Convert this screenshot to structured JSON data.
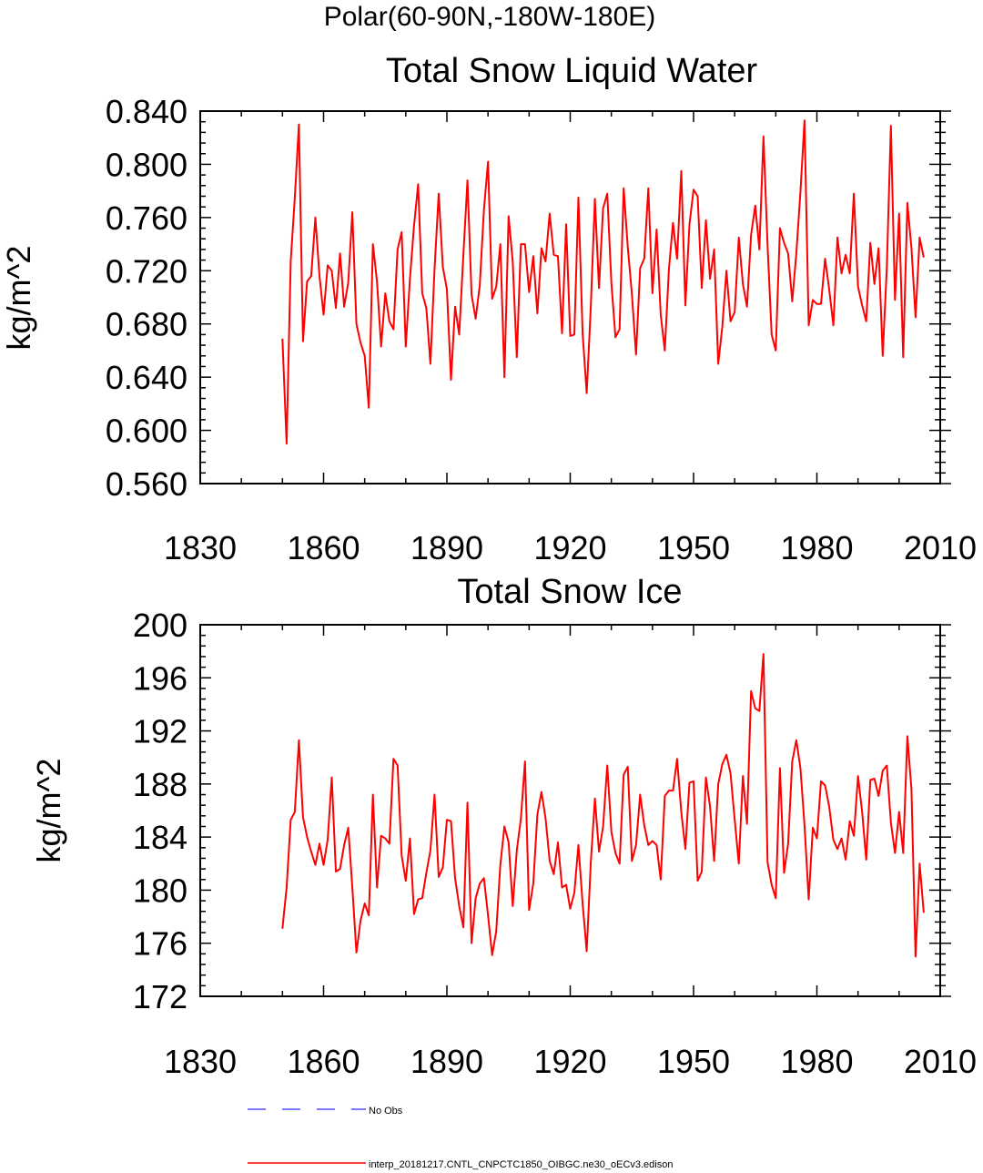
{
  "page_title": "Polar(60-90N,-180W-180E)",
  "legend": {
    "no_obs_label": "No Obs",
    "no_obs_color": "#4d4dff",
    "run_label": "interp_20181217.CNTL_CNPCTC1850_OIBGC.ne30_oECv3.edison",
    "run_color": "#ff0000"
  },
  "chart_data": [
    {
      "type": "line",
      "title": "Total Snow Liquid Water",
      "xlabel": "",
      "ylabel": "kg/m^2",
      "xlim": [
        1830,
        2010
      ],
      "ylim": [
        0.56,
        0.84
      ],
      "xticks": [
        "1830",
        "1860",
        "1890",
        "1920",
        "1950",
        "1980",
        "2010"
      ],
      "yticks": [
        "0.560",
        "0.600",
        "0.640",
        "0.680",
        "0.720",
        "0.760",
        "0.800",
        "0.840"
      ],
      "color": "#ff0000",
      "x_start": 1850,
      "series": [
        {
          "name": "interp_20181217.CNTL_CNPCTC1850_OIBGC.ne30_oECv3.edison",
          "values": [
            0.669,
            0.59,
            0.727,
            0.775,
            0.83,
            0.667,
            0.712,
            0.716,
            0.76,
            0.716,
            0.687,
            0.724,
            0.72,
            0.692,
            0.733,
            0.693,
            0.711,
            0.764,
            0.68,
            0.666,
            0.656,
            0.617,
            0.74,
            0.712,
            0.663,
            0.703,
            0.682,
            0.676,
            0.736,
            0.749,
            0.663,
            0.714,
            0.754,
            0.785,
            0.703,
            0.692,
            0.65,
            0.721,
            0.778,
            0.723,
            0.706,
            0.638,
            0.693,
            0.672,
            0.732,
            0.788,
            0.702,
            0.684,
            0.709,
            0.766,
            0.802,
            0.699,
            0.708,
            0.74,
            0.64,
            0.761,
            0.727,
            0.655,
            0.74,
            0.74,
            0.704,
            0.731,
            0.688,
            0.737,
            0.727,
            0.763,
            0.732,
            0.731,
            0.673,
            0.755,
            0.671,
            0.672,
            0.775,
            0.673,
            0.628,
            0.693,
            0.774,
            0.707,
            0.767,
            0.778,
            0.711,
            0.67,
            0.676,
            0.782,
            0.738,
            0.702,
            0.657,
            0.722,
            0.729,
            0.782,
            0.703,
            0.751,
            0.687,
            0.66,
            0.721,
            0.756,
            0.729,
            0.795,
            0.694,
            0.755,
            0.781,
            0.776,
            0.707,
            0.758,
            0.714,
            0.736,
            0.65,
            0.678,
            0.72,
            0.682,
            0.689,
            0.745,
            0.71,
            0.693,
            0.747,
            0.769,
            0.736,
            0.821,
            0.739,
            0.672,
            0.66,
            0.752,
            0.741,
            0.733,
            0.697,
            0.733,
            0.779,
            0.833,
            0.679,
            0.698,
            0.695,
            0.695,
            0.729,
            0.706,
            0.679,
            0.745,
            0.718,
            0.732,
            0.718,
            0.778,
            0.708,
            0.694,
            0.682,
            0.741,
            0.71,
            0.737,
            0.656,
            0.722,
            0.829,
            0.698,
            0.763,
            0.655,
            0.771,
            0.737,
            0.685,
            0.745,
            0.73
          ]
        }
      ]
    },
    {
      "type": "line",
      "title": "Total Snow Ice",
      "xlabel": "",
      "ylabel": "kg/m^2",
      "xlim": [
        1830,
        2010
      ],
      "ylim": [
        172,
        200
      ],
      "xticks": [
        "1830",
        "1860",
        "1890",
        "1920",
        "1950",
        "1980",
        "2010"
      ],
      "yticks": [
        "172",
        "176",
        "180",
        "184",
        "188",
        "192",
        "196",
        "200"
      ],
      "color": "#ff0000",
      "x_start": 1850,
      "series": [
        {
          "name": "interp_20181217.CNTL_CNPCTC1850_OIBGC.ne30_oECv3.edison",
          "values": [
            177.1,
            180.2,
            185.3,
            185.9,
            191.3,
            185.5,
            184.0,
            182.9,
            181.9,
            183.5,
            181.9,
            183.8,
            188.5,
            181.4,
            181.6,
            183.4,
            184.7,
            180.2,
            175.3,
            177.7,
            179.0,
            178.1,
            187.2,
            180.2,
            184.1,
            183.9,
            183.5,
            189.9,
            189.4,
            182.6,
            180.7,
            183.9,
            178.2,
            179.3,
            179.4,
            181.3,
            183.0,
            187.2,
            181.0,
            181.7,
            185.3,
            185.2,
            180.9,
            178.8,
            177.2,
            186.6,
            176.0,
            179.4,
            180.5,
            180.9,
            178.1,
            175.1,
            176.9,
            181.9,
            184.8,
            183.6,
            178.8,
            183.0,
            185.4,
            189.7,
            178.5,
            180.5,
            185.7,
            187.4,
            185.4,
            182.2,
            181.2,
            183.6,
            180.2,
            180.4,
            178.6,
            179.8,
            183.4,
            179.0,
            175.4,
            182.1,
            186.9,
            182.9,
            184.8,
            189.4,
            184.4,
            182.8,
            182.0,
            188.7,
            189.3,
            182.2,
            183.4,
            187.2,
            184.9,
            183.4,
            183.7,
            183.4,
            180.8,
            187.1,
            187.5,
            187.5,
            189.9,
            185.9,
            183.1,
            188.1,
            188.2,
            180.7,
            181.4,
            188.5,
            186.3,
            182.2,
            188.0,
            189.5,
            190.2,
            188.8,
            185.3,
            182.0,
            188.6,
            185.0,
            195.0,
            193.7,
            193.5,
            197.8,
            182.1,
            180.4,
            179.4,
            189.2,
            181.3,
            183.5,
            189.7,
            191.3,
            189.2,
            184.9,
            179.3,
            184.7,
            183.9,
            188.2,
            187.9,
            186.3,
            183.8,
            183.1,
            183.9,
            182.3,
            185.2,
            184.1,
            188.6,
            185.9,
            182.3,
            188.3,
            188.4,
            187.1,
            189.0,
            189.4,
            185.1,
            182.8,
            185.9,
            182.8,
            191.6,
            187.6,
            175.0,
            182.0,
            178.3
          ]
        }
      ]
    }
  ]
}
